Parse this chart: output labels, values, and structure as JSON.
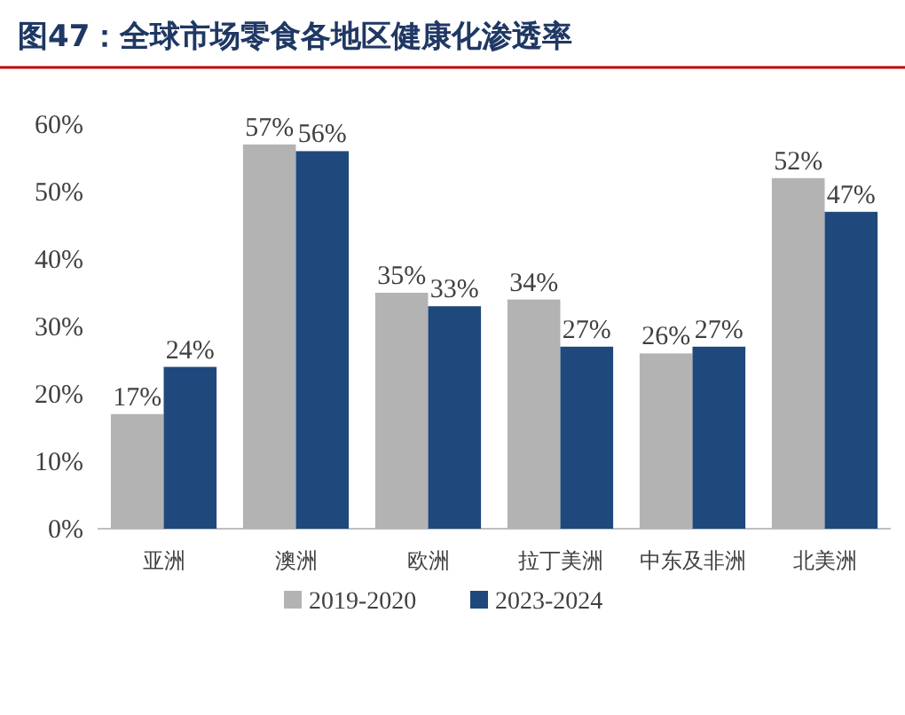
{
  "chart_data": {
    "type": "bar",
    "title": "图47：全球市场零食各地区健康化渗透率",
    "categories": [
      "亚洲",
      "澳洲",
      "欧洲",
      "拉丁美洲",
      "中东及非洲",
      "北美洲"
    ],
    "series": [
      {
        "name": "2019-2020",
        "color": "#b3b3b3",
        "values": [
          17,
          57,
          35,
          34,
          26,
          52
        ],
        "value_labels": [
          "17%",
          "57%",
          "35%",
          "34%",
          "26%",
          "52%"
        ]
      },
      {
        "name": "2023-2024",
        "color": "#1f497d",
        "values": [
          24,
          56,
          33,
          27,
          27,
          47
        ],
        "value_labels": [
          "24%",
          "56%",
          "33%",
          "27%",
          "27%",
          "47%"
        ]
      }
    ],
    "ylim": [
      0,
      60
    ],
    "yticks": [
      {
        "value": 0,
        "label": "0%"
      },
      {
        "value": 10,
        "label": "10%"
      },
      {
        "value": 20,
        "label": "20%"
      },
      {
        "value": 30,
        "label": "30%"
      },
      {
        "value": 40,
        "label": "40%"
      },
      {
        "value": 50,
        "label": "50%"
      },
      {
        "value": 60,
        "label": "60%"
      }
    ],
    "legend": "bottom"
  }
}
